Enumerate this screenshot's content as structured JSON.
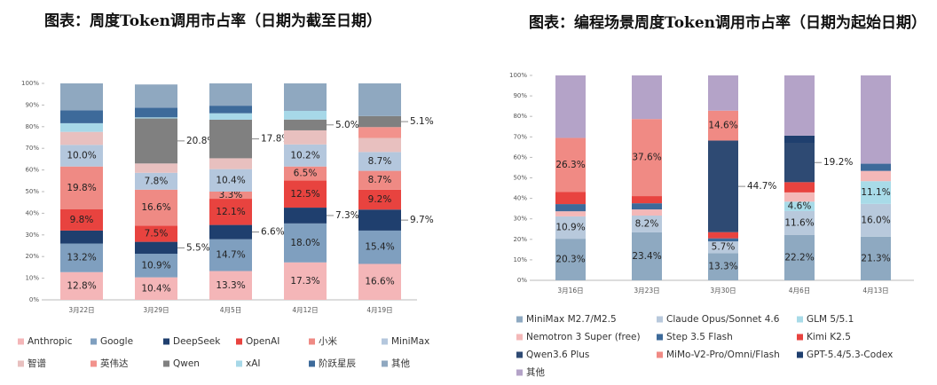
{
  "chart_data": [
    {
      "type": "bar",
      "stacked": true,
      "title": "图表：周度Token调用市占率（日期为截至日期）",
      "categories": [
        "3月22日",
        "3月29日",
        "4月5日",
        "4月12日",
        "4月19日"
      ],
      "ylim": [
        0,
        100
      ],
      "yticks": [
        {
          "value": 0,
          "label": "0%"
        },
        {
          "value": 10,
          "label": "10%"
        },
        {
          "value": 20,
          "label": "20%"
        },
        {
          "value": 30,
          "label": "30%"
        },
        {
          "value": 40,
          "label": "40%"
        },
        {
          "value": 50,
          "label": "50%"
        },
        {
          "value": 60,
          "label": "60%"
        },
        {
          "value": 70,
          "label": "70%"
        },
        {
          "value": 80,
          "label": "80%"
        },
        {
          "value": 90,
          "label": "90%"
        },
        {
          "value": 100,
          "label": "100%"
        }
      ],
      "series": [
        {
          "name": "Anthropic",
          "color": "#f4b6b8",
          "values": [
            12.8,
            10.4,
            13.3,
            17.3,
            16.6
          ],
          "value_labels": [
            "12.8%",
            "10.4%",
            "13.3%",
            "17.3%",
            "16.6%"
          ]
        },
        {
          "name": "Google",
          "color": "#7f9fbf",
          "values": [
            13.2,
            10.9,
            14.7,
            18.0,
            15.4
          ],
          "value_labels": [
            "13.2%",
            "10.9%",
            "14.7%",
            "18.0%",
            "15.4%"
          ]
        },
        {
          "name": "DeepSeek",
          "color": "#1f3f6e",
          "values": [
            6.0,
            5.5,
            6.6,
            7.3,
            9.7
          ],
          "value_labels": [
            null,
            "5.5%",
            "6.6%",
            "7.3%",
            "9.7%"
          ]
        },
        {
          "name": "OpenAI",
          "color": "#e8433f",
          "values": [
            9.8,
            7.5,
            12.1,
            12.5,
            9.2
          ],
          "value_labels": [
            "9.8%",
            "7.5%",
            "12.1%",
            "12.5%",
            "9.2%"
          ]
        },
        {
          "name": "小米",
          "color": "#ef8a84",
          "values": [
            19.8,
            16.6,
            3.3,
            6.5,
            8.7
          ],
          "value_labels": [
            "19.8%",
            "16.6%",
            "3.3%",
            "6.5%",
            "8.7%"
          ]
        },
        {
          "name": "MiniMax",
          "color": "#b4c7dd",
          "values": [
            10.0,
            7.8,
            10.4,
            10.2,
            8.7
          ],
          "value_labels": [
            "10.0%",
            "7.8%",
            "10.4%",
            "10.2%",
            "8.7%"
          ]
        },
        {
          "name": "智谱",
          "color": "#e8c0bf",
          "values": [
            6.0,
            4.3,
            5.0,
            6.5,
            6.5
          ],
          "value_labels": [
            null,
            null,
            null,
            null,
            null
          ]
        },
        {
          "name": "英伟达",
          "color": "#f2928c",
          "values": [
            0,
            0,
            0,
            0,
            5.0
          ],
          "value_labels": [
            null,
            null,
            null,
            null,
            null
          ]
        },
        {
          "name": "Qwen",
          "color": "#808080",
          "values": [
            0,
            20.8,
            17.8,
            5.0,
            5.1
          ],
          "value_labels": [
            null,
            "20.8%",
            "17.8%",
            "5.0%",
            "5.1%"
          ]
        },
        {
          "name": "xAI",
          "color": "#a7d8e8",
          "values": [
            4.0,
            0.5,
            3.0,
            4.0,
            0
          ],
          "value_labels": [
            null,
            null,
            null,
            null,
            null
          ]
        },
        {
          "name": "阶跃星辰",
          "color": "#3d6a9a",
          "values": [
            6.0,
            4.5,
            3.5,
            0,
            0
          ],
          "value_labels": [
            null,
            null,
            null,
            null,
            null
          ]
        },
        {
          "name": "其他",
          "color": "#8fa8c0",
          "values": [
            12.4,
            10.7,
            10.3,
            12.7,
            15.1
          ],
          "value_labels": [
            null,
            null,
            null,
            null,
            null
          ]
        }
      ]
    },
    {
      "type": "bar",
      "stacked": true,
      "title": "图表：编程场景周度Token调用市占率（日期为起始日期）",
      "categories": [
        "3月16日",
        "3月23日",
        "3月30日",
        "4月6日",
        "4月13日"
      ],
      "ylim": [
        0,
        100
      ],
      "yticks": [
        {
          "value": 0,
          "label": "0%"
        },
        {
          "value": 10,
          "label": "10%"
        },
        {
          "value": 20,
          "label": "20%"
        },
        {
          "value": 30,
          "label": "30%"
        },
        {
          "value": 40,
          "label": "40%"
        },
        {
          "value": 50,
          "label": "50%"
        },
        {
          "value": 60,
          "label": "60%"
        },
        {
          "value": 70,
          "label": "70%"
        },
        {
          "value": 80,
          "label": "80%"
        },
        {
          "value": 90,
          "label": "90%"
        },
        {
          "value": 100,
          "label": "100%"
        }
      ],
      "series": [
        {
          "name": "MiniMax M2.7/M2.5",
          "color": "#8ea9c1",
          "values": [
            20.3,
            23.4,
            13.3,
            22.2,
            21.3
          ],
          "value_labels": [
            "20.3%",
            "23.4%",
            "13.3%",
            "22.2%",
            "21.3%"
          ]
        },
        {
          "name": "Claude Opus/Sonnet 4.6",
          "color": "#b8c9dc",
          "values": [
            10.9,
            8.2,
            5.7,
            11.6,
            16.0
          ],
          "value_labels": [
            "10.9%",
            "8.2%",
            "5.7%",
            "11.6%",
            "16.0%"
          ]
        },
        {
          "name": "GLM 5/5.1",
          "color": "#a8dbe8",
          "values": [
            0,
            0,
            0,
            4.6,
            11.1
          ],
          "value_labels": [
            null,
            null,
            null,
            "4.6%",
            "11.1%"
          ]
        },
        {
          "name": "Nemotron 3 Super (free)",
          "color": "#f4b8b8",
          "values": [
            2.5,
            3.0,
            0,
            4.5,
            5.0
          ],
          "value_labels": [
            null,
            null,
            null,
            null,
            null
          ]
        },
        {
          "name": "Step 3.5 Flash",
          "color": "#3d6a9a",
          "values": [
            3.5,
            3.0,
            1.5,
            0,
            3.5
          ],
          "value_labels": [
            null,
            null,
            null,
            null,
            null
          ]
        },
        {
          "name": "Kimi K2.5",
          "color": "#e8433f",
          "values": [
            6.0,
            3.5,
            3.0,
            5.0,
            0
          ],
          "value_labels": [
            null,
            null,
            null,
            null,
            null
          ]
        },
        {
          "name": "Qwen3.6 Plus",
          "color": "#2e4a73",
          "values": [
            0,
            0,
            44.7,
            19.2,
            0
          ],
          "value_labels": [
            null,
            null,
            "44.7%",
            "19.2%",
            null
          ]
        },
        {
          "name": "MiMo-V2-Pro/Omni/Flash",
          "color": "#f08a84",
          "values": [
            26.3,
            37.6,
            14.6,
            0,
            0
          ],
          "value_labels": [
            "26.3%",
            "37.6%",
            "14.6%",
            null,
            null
          ]
        },
        {
          "name": "GPT-5.4/5.3-Codex",
          "color": "#1f3f6e",
          "values": [
            0,
            0,
            0,
            3.5,
            0
          ],
          "value_labels": [
            null,
            null,
            null,
            null,
            null
          ]
        },
        {
          "name": "其他",
          "color": "#b4a3c8",
          "values": [
            30.5,
            21.3,
            17.2,
            29.4,
            43.1
          ],
          "value_labels": [
            null,
            null,
            null,
            null,
            null
          ]
        }
      ]
    }
  ]
}
